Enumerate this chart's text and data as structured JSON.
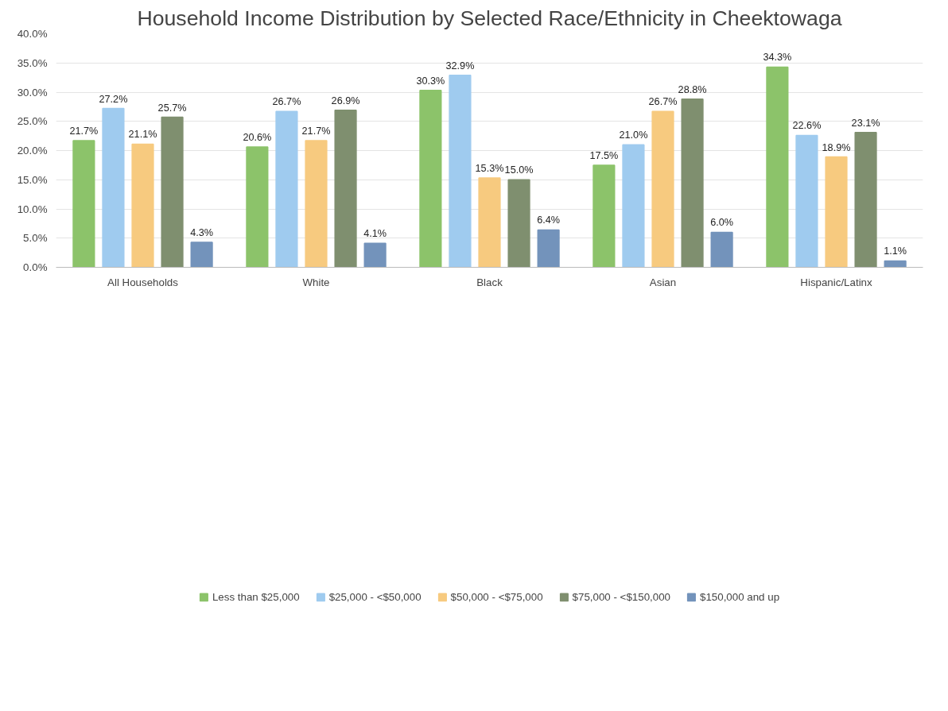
{
  "chart_data": {
    "type": "bar",
    "title": "Household Income Distribution by Selected Race/Ethnicity in Cheektowaga",
    "categories": [
      "All Households",
      "White",
      "Black",
      "Asian",
      "Hispanic/Latinx"
    ],
    "series": [
      {
        "name": "Less than $25,000",
        "color": "#8cc36a",
        "values": [
          21.7,
          20.6,
          30.3,
          17.5,
          34.3
        ],
        "value_labels": [
          "21.7%",
          "20.6%",
          "30.3%",
          "17.5%",
          "34.3%"
        ]
      },
      {
        "name": "$25,000 - <$50,000",
        "color": "#9fcbef",
        "values": [
          27.2,
          26.7,
          32.9,
          21.0,
          22.6
        ],
        "value_labels": [
          "27.2%",
          "26.7%",
          "32.9%",
          "21.0%",
          "22.6%"
        ]
      },
      {
        "name": "$50,000 - <$75,000",
        "color": "#f7ca7f",
        "values": [
          21.1,
          21.7,
          15.3,
          26.7,
          18.9
        ],
        "value_labels": [
          "21.1%",
          "21.7%",
          "15.3%",
          "26.7%",
          "18.9%"
        ]
      },
      {
        "name": "$75,000 - <$150,000",
        "color": "#7f8f6f",
        "values": [
          25.7,
          26.9,
          15.0,
          28.8,
          23.1
        ],
        "value_labels": [
          "25.7%",
          "26.9%",
          "15.0%",
          "28.8%",
          "23.1%"
        ]
      },
      {
        "name": "$150,000 and up",
        "color": "#7393bb",
        "values": [
          4.3,
          4.1,
          6.4,
          6.0,
          1.1
        ],
        "value_labels": [
          "4.3%",
          "4.1%",
          "6.4%",
          "6.0%",
          "1.1%"
        ]
      }
    ],
    "ylim": [
      0,
      40
    ],
    "yticks": [
      {
        "value": 0,
        "label": "0.0%"
      },
      {
        "value": 5,
        "label": "5.0%"
      },
      {
        "value": 10,
        "label": "10.0%"
      },
      {
        "value": 15,
        "label": "15.0%"
      },
      {
        "value": 20,
        "label": "20.0%"
      },
      {
        "value": 25,
        "label": "25.0%"
      },
      {
        "value": 30,
        "label": "30.0%"
      },
      {
        "value": 35,
        "label": "35.0%"
      },
      {
        "value": 40,
        "label": "40.0%"
      }
    ],
    "grid": "y",
    "legend": "bottom"
  }
}
